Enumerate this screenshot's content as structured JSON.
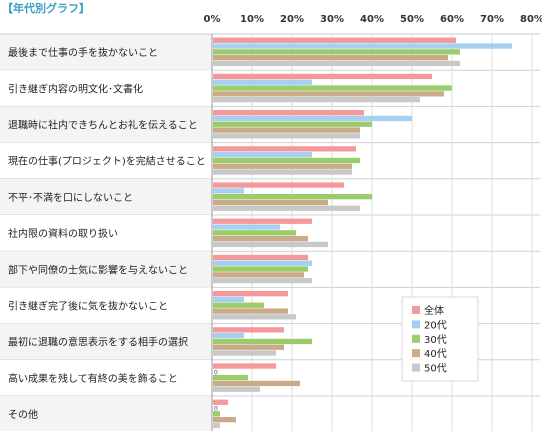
{
  "chart_data": {
    "type": "bar",
    "orientation": "horizontal",
    "title": "【年代別グラフ】",
    "categories": [
      "最後まで仕事の手を抜かないこと",
      "引き継ぎ内容の明文化･文書化",
      "退職時に社内できちんとお礼を伝えること",
      "現在の仕事(プロジェクト)を完結させること",
      "不平･不満を口にしないこと",
      "社内限の資料の取り扱い",
      "部下や同僚の士気に影響を与えないこと",
      "引き継ぎ完了後に気を抜かないこと",
      "最初に退職の意思表示をする相手の選択",
      "高い成果を残して有終の美を飾ること",
      "その他"
    ],
    "series": [
      {
        "name": "全体",
        "color": "#f4999b",
        "values": [
          61,
          55,
          38,
          36,
          33,
          25,
          24,
          19,
          18,
          16,
          4
        ]
      },
      {
        "name": "20代",
        "color": "#a7cff2",
        "values": [
          75,
          25,
          50,
          25,
          8,
          17,
          25,
          8,
          8,
          0,
          0
        ]
      },
      {
        "name": "30代",
        "color": "#9acc6a",
        "values": [
          62,
          60,
          40,
          37,
          40,
          21,
          24,
          13,
          25,
          9,
          2
        ]
      },
      {
        "name": "40代",
        "color": "#c9ac87",
        "values": [
          59,
          58,
          37,
          35,
          29,
          24,
          23,
          19,
          18,
          22,
          6
        ]
      },
      {
        "name": "50代",
        "color": "#c8c8c8",
        "values": [
          62,
          52,
          37,
          35,
          37,
          29,
          25,
          21,
          16,
          12,
          2
        ]
      }
    ],
    "xticks": [
      "0%",
      "10%",
      "20%",
      "30%",
      "40%",
      "50%",
      "60%",
      "70%",
      "80%"
    ],
    "xlim": [
      0,
      80
    ],
    "grid": true,
    "legend": "lower-right"
  }
}
